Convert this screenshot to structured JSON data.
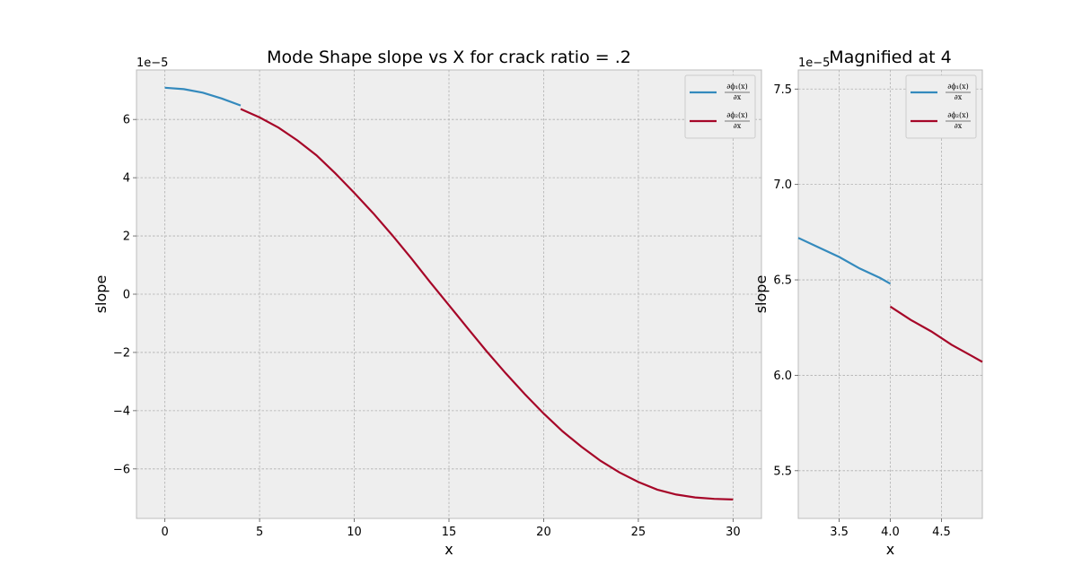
{
  "chart_data": [
    {
      "type": "line",
      "title": "Mode Shape slope vs X for crack ratio = .2",
      "xlabel": "x",
      "ylabel": "slope",
      "offset_label": "1e−5",
      "xlim": [
        -1.5,
        31.5
      ],
      "ylim": [
        -7.7,
        7.7
      ],
      "xticks": [
        0,
        5,
        10,
        15,
        20,
        25,
        30
      ],
      "yticks": [
        -6,
        -4,
        -2,
        0,
        2,
        4,
        6
      ],
      "grid": true,
      "legend_location": "upper right",
      "series": [
        {
          "name": "∂ϕ₁(x) / ∂x",
          "name_num": "∂ϕ₁(x)",
          "name_den": "∂x",
          "color": "#348abd",
          "x": [
            0,
            1,
            2,
            3,
            4
          ],
          "y": [
            7.09,
            7.04,
            6.92,
            6.72,
            6.48
          ]
        },
        {
          "name": "∂ϕ₂(x) / ∂x",
          "name_num": "∂ϕ₂(x)",
          "name_den": "∂x",
          "color": "#a60628",
          "x": [
            4,
            5,
            6,
            7,
            8,
            9,
            10,
            11,
            12,
            13,
            14,
            15,
            16,
            17,
            18,
            19,
            20,
            21,
            22,
            23,
            24,
            25,
            26,
            27,
            28,
            29,
            30
          ],
          "y": [
            6.36,
            6.07,
            5.72,
            5.28,
            4.77,
            4.15,
            3.48,
            2.78,
            2.03,
            1.24,
            0.42,
            -0.38,
            -1.18,
            -1.97,
            -2.72,
            -3.43,
            -4.1,
            -4.71,
            -5.24,
            -5.72,
            -6.12,
            -6.45,
            -6.71,
            -6.88,
            -6.98,
            -7.03,
            -7.05
          ]
        }
      ]
    },
    {
      "type": "line",
      "title": "Magnified at 4",
      "xlabel": "x",
      "ylabel": "slope",
      "offset_label": "1e−5",
      "xlim": [
        3.1,
        4.9
      ],
      "ylim": [
        5.25,
        7.6
      ],
      "xticks": [
        3.5,
        4.0,
        4.5
      ],
      "xtick_labels": [
        "3.5",
        "4.0",
        "4.5"
      ],
      "yticks": [
        5.5,
        6.0,
        6.5,
        7.0,
        7.5
      ],
      "ytick_labels": [
        "5.5",
        "6.0",
        "6.5",
        "7.0",
        "7.5"
      ],
      "grid": true,
      "legend_location": "upper right",
      "series": [
        {
          "name": "∂ϕ₁(x) / ∂x",
          "name_num": "∂ϕ₁(x)",
          "name_den": "∂x",
          "color": "#348abd",
          "x": [
            3.1,
            3.3,
            3.5,
            3.7,
            3.9,
            4.0
          ],
          "y": [
            6.72,
            6.67,
            6.62,
            6.56,
            6.51,
            6.48
          ]
        },
        {
          "name": "∂ϕ₂(x) / ∂x",
          "name_num": "∂ϕ₂(x)",
          "name_den": "∂x",
          "color": "#a60628",
          "x": [
            4.0,
            4.2,
            4.4,
            4.6,
            4.8,
            4.9
          ],
          "y": [
            6.36,
            6.29,
            6.23,
            6.16,
            6.1,
            6.07
          ]
        }
      ]
    }
  ]
}
